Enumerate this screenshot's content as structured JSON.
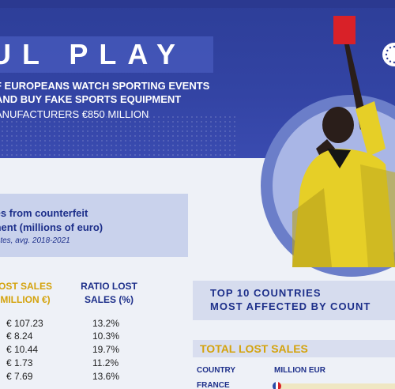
{
  "header": {
    "title": "UL PLAY",
    "subtitle_line1": "F EUROPEANS WATCH SPORTING EVENTS",
    "subtitle_line2": "AND BUY FAKE SPORTS EQUIPMENT",
    "subtitle_line3": "ANUFACTURERS €850 MILLION"
  },
  "info_panel": {
    "title_line1": "les from counterfeit",
    "title_line2": "ment (millions of euro)",
    "note": "tates, avg. 2018-2021"
  },
  "table": {
    "col1_header_line1": "OST SALES",
    "col1_header_line2": "MILLION €)",
    "col2_header_line1": "RATIO LOST",
    "col2_header_line2": "SALES (%)",
    "rows": [
      {
        "lost_sales": "€ 107.23",
        "ratio": "13.2%"
      },
      {
        "lost_sales": "€ 8.24",
        "ratio": "10.3%"
      },
      {
        "lost_sales": "€ 10.44",
        "ratio": "19.7%"
      },
      {
        "lost_sales": "€ 1.73",
        "ratio": "11.2%"
      },
      {
        "lost_sales": "€ 7.69",
        "ratio": "13.6%"
      }
    ]
  },
  "top10": {
    "title_line1": "TOP 10 COUNTRIES",
    "title_line2": "MOST AFFECTED BY COUNT",
    "section_title": "TOTAL LOST SALES",
    "country_header": "COUNTRY",
    "million_header": "MILLION EUR",
    "first_country": "FRANCE"
  },
  "colors": {
    "header_blue": "#2d3e98",
    "accent_gold": "#d4a30d",
    "text_navy": "#1d2f8a",
    "panel_light": "#c9d2ec"
  },
  "icons": {
    "eu_badge": "eu-stars-icon",
    "flag": "france-flag-icon"
  }
}
